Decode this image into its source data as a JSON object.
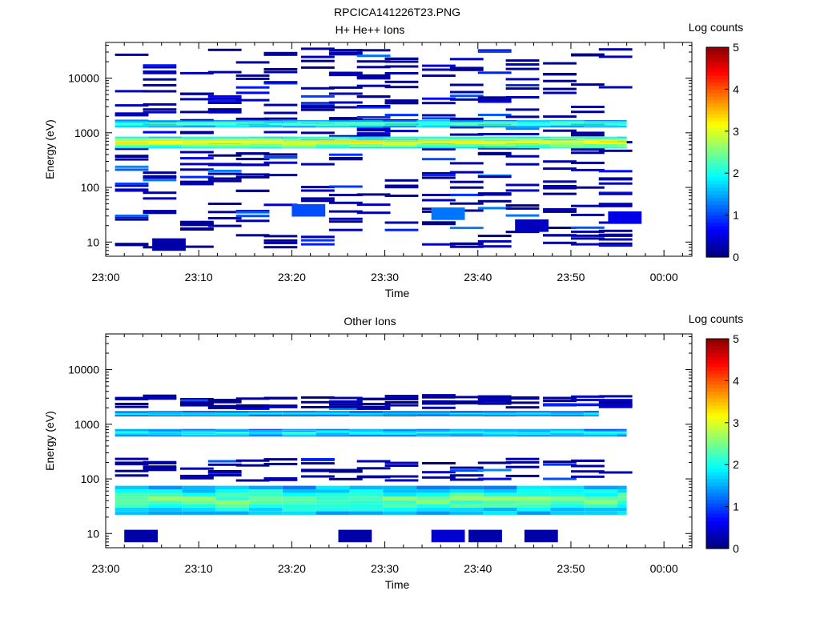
{
  "page": {
    "title": "RPCICA141226T23.PNG"
  },
  "chart_data": [
    {
      "type": "heatmap",
      "title": "H+ He++ Ions",
      "xlabel": "Time",
      "ylabel": "Energy (eV)",
      "x_ticks": [
        "23:00",
        "23:10",
        "23:20",
        "23:30",
        "23:40",
        "23:50",
        "00:00"
      ],
      "xlim": [
        "23:00",
        "00:03"
      ],
      "y_scale": "log",
      "ylim": [
        5.5,
        45000
      ],
      "y_ticks": [
        10,
        100,
        1000,
        10000
      ],
      "colorbar": {
        "label": "Log counts",
        "range": [
          0,
          5
        ],
        "ticks": [
          "0",
          "1",
          "2",
          "3",
          "4",
          "5"
        ],
        "colormap": "jet"
      },
      "time_bins": [
        "23:01",
        "23:04",
        "23:08",
        "23:11",
        "23:14",
        "23:17",
        "23:21",
        "23:24",
        "23:27",
        "23:30",
        "23:34",
        "23:37",
        "23:40",
        "23:43",
        "23:47",
        "23:50",
        "23:53"
      ],
      "bands": [
        {
          "energy_range": [
            1250,
            1700
          ],
          "from": "23:01",
          "to": "23:56",
          "log_counts": 2.3
        },
        {
          "energy_range": [
            520,
            850
          ],
          "from": "23:01",
          "to": "23:56",
          "log_counts": 3.2
        }
      ],
      "scattered_cells": [
        {
          "time": "23:05",
          "energy": 9,
          "log_counts": 0.2
        },
        {
          "time": "23:44",
          "energy": 20,
          "log_counts": 0.3
        },
        {
          "time": "23:54",
          "energy": 28,
          "log_counts": 0.5
        },
        {
          "time": "23:20",
          "energy": 38,
          "log_counts": 1.0
        },
        {
          "time": "23:35",
          "energy": 33,
          "log_counts": 1.2
        }
      ]
    },
    {
      "type": "heatmap",
      "title": "Other Ions",
      "xlabel": "Time",
      "ylabel": "Energy (eV)",
      "x_ticks": [
        "23:00",
        "23:10",
        "23:20",
        "23:30",
        "23:40",
        "23:50",
        "00:00"
      ],
      "xlim": [
        "23:00",
        "00:03"
      ],
      "y_scale": "log",
      "ylim": [
        5.5,
        45000
      ],
      "y_ticks": [
        10,
        100,
        1000,
        10000
      ],
      "colorbar": {
        "label": "Log counts",
        "range": [
          0,
          5
        ],
        "ticks": [
          "0",
          "1",
          "2",
          "3",
          "4",
          "5"
        ],
        "colormap": "jet"
      },
      "time_bins": [
        "23:01",
        "23:04",
        "23:08",
        "23:11",
        "23:14",
        "23:17",
        "23:21",
        "23:24",
        "23:27",
        "23:30",
        "23:34",
        "23:37",
        "23:40",
        "23:43",
        "23:47",
        "23:50",
        "23:53"
      ],
      "bands": [
        {
          "energy_range": [
            1400,
            1750
          ],
          "from": "23:01",
          "to": "23:53",
          "log_counts": 1.8
        },
        {
          "energy_range": [
            600,
            820
          ],
          "from": "23:01",
          "to": "23:56",
          "log_counts": 2.0
        },
        {
          "energy_range": [
            22,
            75
          ],
          "from": "23:01",
          "to": "23:56",
          "log_counts": 2.5
        }
      ],
      "scattered_cells": [
        {
          "time": "23:02",
          "energy": 9,
          "log_counts": 0.2
        },
        {
          "time": "23:25",
          "energy": 9,
          "log_counts": 0.2
        },
        {
          "time": "23:35",
          "energy": 9,
          "log_counts": 0.4
        },
        {
          "time": "23:39",
          "energy": 9,
          "log_counts": 0.2
        },
        {
          "time": "23:45",
          "energy": 9,
          "log_counts": 0.2
        }
      ]
    }
  ]
}
